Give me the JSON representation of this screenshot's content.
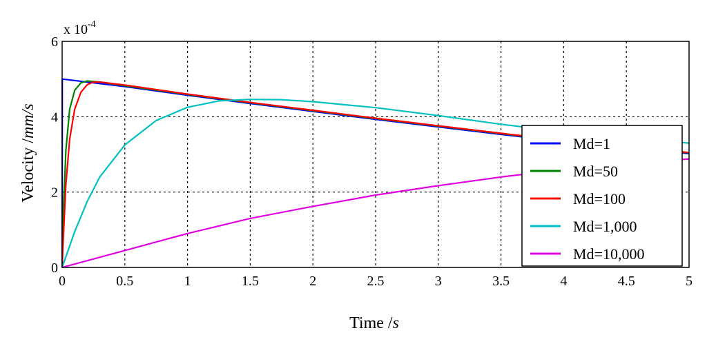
{
  "chart_data": {
    "type": "line",
    "xlabel": "Time /s",
    "ylabel": "Velocity /mm/s",
    "ylabel_parts": {
      "main": "Velocity /",
      "unit": "mm/s"
    },
    "xlabel_parts": {
      "main": "Time /",
      "unit": "s"
    },
    "y_multiplier": "x 10",
    "y_multiplier_exp": "-4",
    "xlim": [
      0,
      5
    ],
    "ylim": [
      0,
      6
    ],
    "xticks": [
      0,
      0.5,
      1,
      1.5,
      2,
      2.5,
      3,
      3.5,
      4,
      4.5,
      5
    ],
    "xtick_labels": [
      "0",
      "0.5",
      "1",
      "1.5",
      "2",
      "2.5",
      "3",
      "3.5",
      "4",
      "4.5",
      "5"
    ],
    "yticks": [
      0,
      2,
      4,
      6
    ],
    "ytick_labels": [
      "0",
      "2",
      "4",
      "6"
    ],
    "grid": true,
    "legend_position": "right",
    "series": [
      {
        "name": "Md=1",
        "color": "#0000ff",
        "x": [
          0,
          0.001,
          0.5,
          1,
          1.5,
          2,
          2.5,
          3,
          3.5,
          4,
          4.5,
          5
        ],
        "y": [
          0,
          5.0,
          4.8,
          4.57,
          4.35,
          4.14,
          3.93,
          3.73,
          3.53,
          3.34,
          3.18,
          3.02
        ]
      },
      {
        "name": "Md=50",
        "color": "#008000",
        "x": [
          0,
          0.01,
          0.03,
          0.06,
          0.1,
          0.15,
          0.2,
          0.3,
          0.5,
          1,
          1.5,
          2,
          2.5,
          3,
          3.5,
          4,
          4.5,
          5
        ],
        "y": [
          0,
          1.5,
          3.1,
          4.2,
          4.7,
          4.9,
          4.95,
          4.92,
          4.82,
          4.59,
          4.37,
          4.16,
          3.95,
          3.75,
          3.55,
          3.36,
          3.2,
          3.04
        ]
      },
      {
        "name": "Md=100",
        "color": "#ff0000",
        "x": [
          0,
          0.01,
          0.03,
          0.06,
          0.1,
          0.15,
          0.2,
          0.25,
          0.3,
          0.5,
          1,
          1.5,
          2,
          2.5,
          3,
          3.5,
          4,
          4.5,
          5
        ],
        "y": [
          0,
          0.8,
          2.2,
          3.4,
          4.2,
          4.65,
          4.85,
          4.92,
          4.92,
          4.84,
          4.6,
          4.38,
          4.17,
          3.96,
          3.76,
          3.56,
          3.37,
          3.21,
          3.05
        ]
      },
      {
        "name": "Md=1,000",
        "color": "#00c0c0",
        "x": [
          0,
          0.1,
          0.2,
          0.3,
          0.5,
          0.75,
          1,
          1.25,
          1.5,
          1.75,
          2,
          2.5,
          3,
          3.5,
          4,
          4.5,
          5
        ],
        "y": [
          0,
          0.95,
          1.75,
          2.4,
          3.25,
          3.9,
          4.25,
          4.42,
          4.46,
          4.45,
          4.4,
          4.24,
          4.03,
          3.8,
          3.6,
          3.43,
          3.3
        ]
      },
      {
        "name": "Md=10,000",
        "color": "#e000e0",
        "x": [
          0,
          0.5,
          1,
          1.5,
          2,
          2.5,
          3,
          3.5,
          4,
          4.5,
          5
        ],
        "y": [
          0,
          0.45,
          0.9,
          1.3,
          1.62,
          1.92,
          2.17,
          2.4,
          2.6,
          2.76,
          2.88
        ]
      }
    ]
  }
}
